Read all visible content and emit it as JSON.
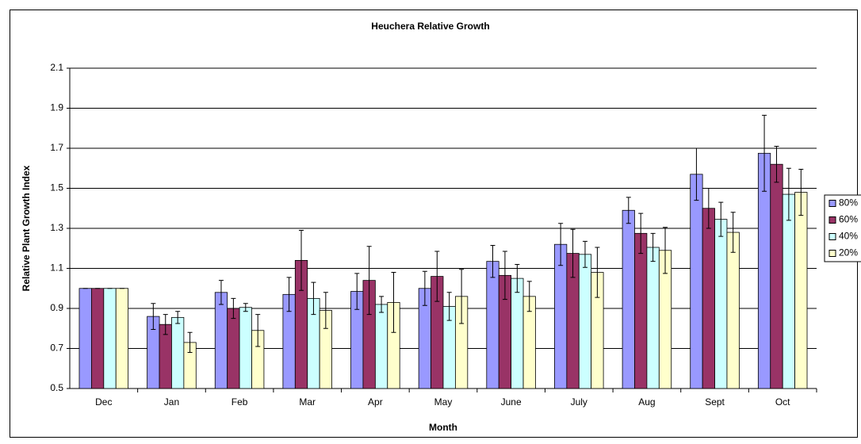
{
  "chart_data": {
    "type": "bar",
    "title": "Heuchera Relative Growth",
    "x_label": "Month",
    "y_label": "Relative Plant Growth Index",
    "categories": [
      "Dec",
      "Jan",
      "Feb",
      "Mar",
      "Apr",
      "May",
      "June",
      "July",
      "Aug",
      "Sept",
      "Oct"
    ],
    "series": [
      {
        "name": "80%",
        "color": "#9999ff",
        "values": [
          1.0,
          0.86,
          0.98,
          0.97,
          0.985,
          1.0,
          1.135,
          1.22,
          1.39,
          1.57,
          1.675
        ],
        "errors": [
          0,
          0.065,
          0.06,
          0.085,
          0.09,
          0.085,
          0.08,
          0.105,
          0.065,
          0.13,
          0.19
        ]
      },
      {
        "name": "60%",
        "color": "#993366",
        "values": [
          1.0,
          0.82,
          0.9,
          1.14,
          1.04,
          1.06,
          1.065,
          1.175,
          1.275,
          1.4,
          1.62
        ],
        "errors": [
          0,
          0.05,
          0.05,
          0.15,
          0.17,
          0.125,
          0.12,
          0.12,
          0.1,
          0.1,
          0.09
        ]
      },
      {
        "name": "40%",
        "color": "#ccffff",
        "values": [
          1.0,
          0.855,
          0.905,
          0.95,
          0.92,
          0.91,
          1.05,
          1.17,
          1.205,
          1.345,
          1.47
        ],
        "errors": [
          0,
          0.03,
          0.02,
          0.08,
          0.04,
          0.07,
          0.07,
          0.065,
          0.07,
          0.085,
          0.13
        ]
      },
      {
        "name": "20%",
        "color": "#ffffcc",
        "values": [
          1.0,
          0.73,
          0.79,
          0.89,
          0.93,
          0.96,
          0.96,
          1.08,
          1.19,
          1.28,
          1.48
        ],
        "errors": [
          0,
          0.05,
          0.08,
          0.09,
          0.15,
          0.135,
          0.075,
          0.125,
          0.115,
          0.1,
          0.115
        ]
      }
    ],
    "ylim": [
      0.5,
      2.1
    ],
    "yticks": [
      0.5,
      0.7,
      0.9,
      1.1,
      1.3,
      1.5,
      1.7,
      1.9,
      2.1
    ],
    "grid": true,
    "legend": "right"
  }
}
